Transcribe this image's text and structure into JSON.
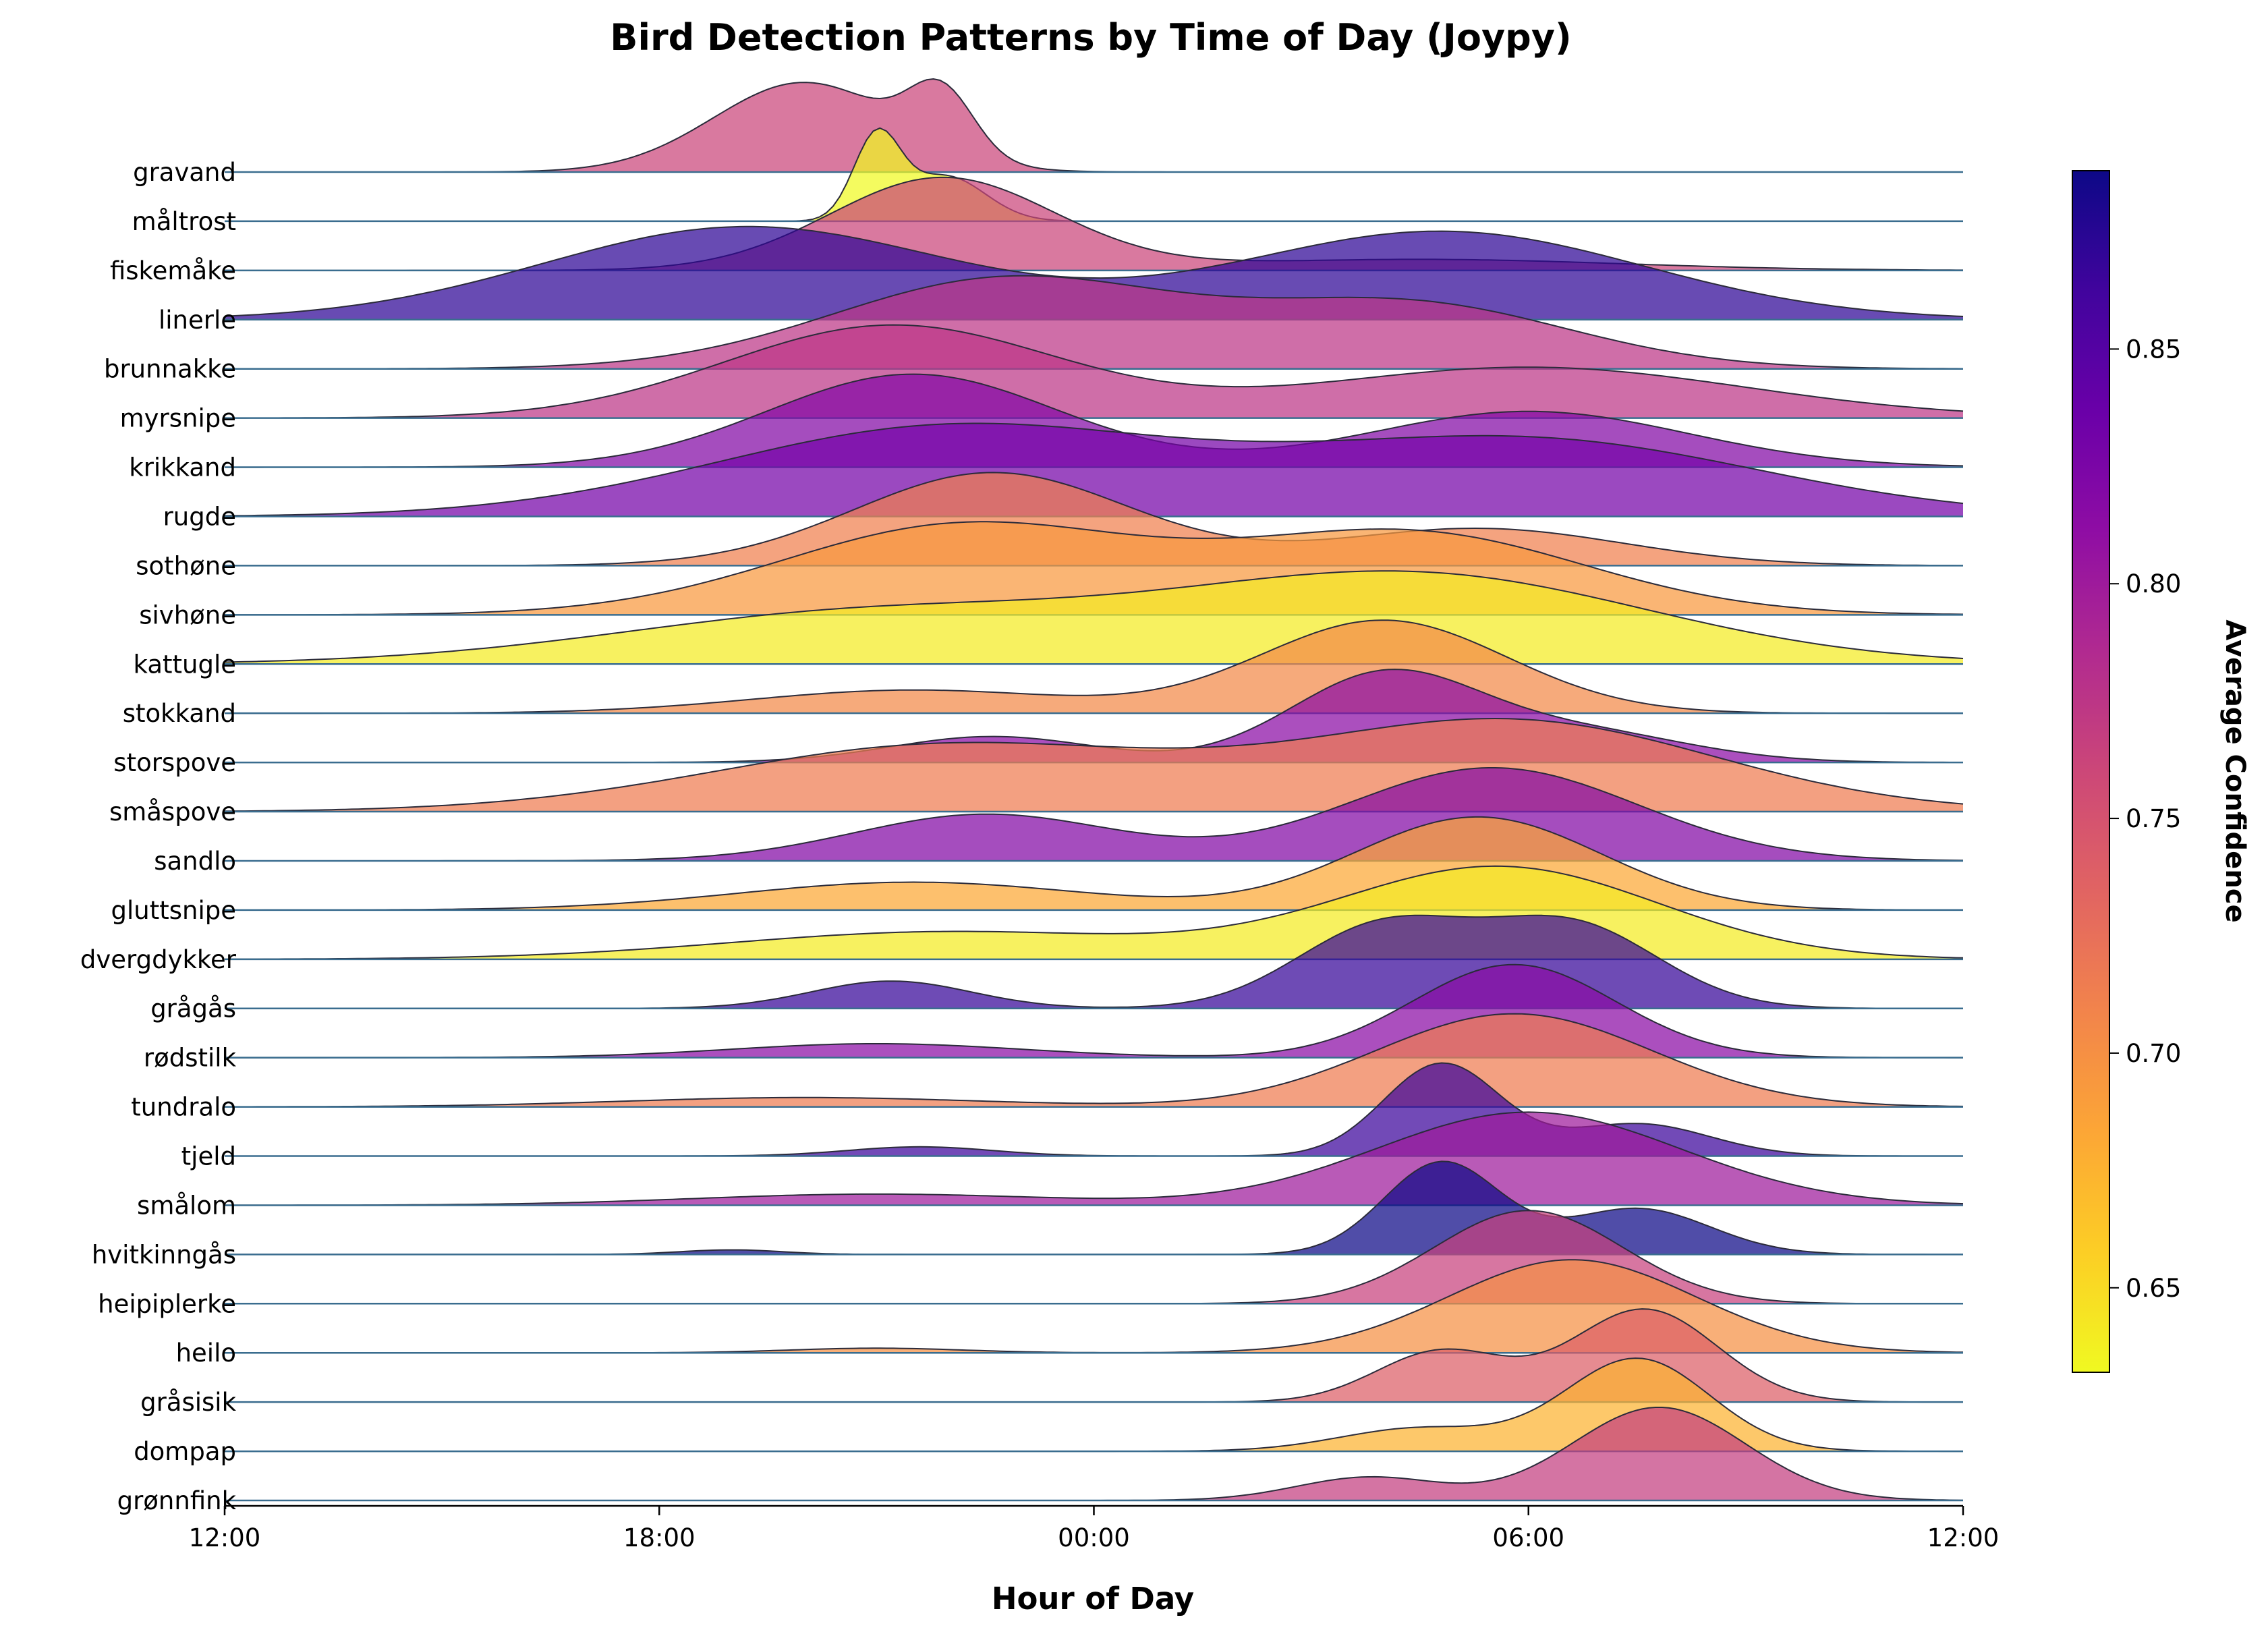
{
  "chart_data": {
    "type": "joyplot",
    "title": "Bird Detection Patterns by Time of Day (Joypy)",
    "xlabel": "Hour of Day",
    "x_ticks": [
      "12:00",
      "18:00",
      "00:00",
      "06:00",
      "12:00"
    ],
    "x_range_hours_from_noon": [
      0,
      24
    ],
    "grid": false,
    "colorbar": {
      "label": "Average Confidence",
      "range": [
        0.632,
        0.888
      ],
      "ticks": [
        "0.65",
        "0.70",
        "0.75",
        "0.80",
        "0.85"
      ],
      "colormap": "plasma_r"
    },
    "series": [
      {
        "name": "gravand",
        "confidence": 0.762,
        "peaks": [
          [
            8.0,
            1.25,
            1.0
          ],
          [
            9.9,
            0.45,
            0.7
          ]
        ]
      },
      {
        "name": "måltrost",
        "confidence": 0.632,
        "peaks": [
          [
            9.0,
            0.32,
            1.0
          ],
          [
            9.95,
            0.55,
            0.55
          ]
        ]
      },
      {
        "name": "fiskemåke",
        "confidence": 0.762,
        "peaks": [
          [
            9.9,
            1.55,
            1.0
          ],
          [
            16.5,
            2.8,
            0.12
          ]
        ]
      },
      {
        "name": "linerle",
        "confidence": 0.872,
        "peaks": [
          [
            7.2,
            2.8,
            1.0
          ],
          [
            16.8,
            2.8,
            0.95
          ]
        ]
      },
      {
        "name": "brunnakke",
        "confidence": 0.775,
        "peaks": [
          [
            10.8,
            2.4,
            1.0
          ],
          [
            16.4,
            2.2,
            0.7
          ]
        ]
      },
      {
        "name": "myrsnipe",
        "confidence": 0.775,
        "peaks": [
          [
            9.2,
            2.3,
            1.0
          ],
          [
            18.0,
            3.0,
            0.55
          ]
        ]
      },
      {
        "name": "krikkand",
        "confidence": 0.82,
        "peaks": [
          [
            9.5,
            2.0,
            1.0
          ],
          [
            18.0,
            2.2,
            0.6
          ]
        ]
      },
      {
        "name": "rugde",
        "confidence": 0.83,
        "peaks": [
          [
            10.0,
            3.2,
            1.0
          ],
          [
            18.0,
            3.2,
            0.85
          ]
        ]
      },
      {
        "name": "sothøne",
        "confidence": 0.712,
        "peaks": [
          [
            10.6,
            1.9,
            1.0
          ],
          [
            17.3,
            2.0,
            0.4
          ]
        ]
      },
      {
        "name": "sivhøne",
        "confidence": 0.694,
        "peaks": [
          [
            10.2,
            2.5,
            1.0
          ],
          [
            16.4,
            2.4,
            0.9
          ]
        ]
      },
      {
        "name": "kattugle",
        "confidence": 0.64,
        "peaks": [
          [
            16.5,
            3.2,
            1.0
          ],
          [
            9.0,
            3.5,
            0.6
          ]
        ]
      },
      {
        "name": "stokkand",
        "confidence": 0.705,
        "peaks": [
          [
            16.0,
            1.7,
            1.0
          ],
          [
            9.5,
            2.2,
            0.25
          ]
        ]
      },
      {
        "name": "storspove",
        "confidence": 0.815,
        "peaks": [
          [
            16.0,
            1.3,
            1.0
          ],
          [
            10.6,
            1.4,
            0.3
          ],
          [
            18.7,
            1.5,
            0.35
          ]
        ]
      },
      {
        "name": "småspove",
        "confidence": 0.715,
        "peaks": [
          [
            17.8,
            2.8,
            1.0
          ],
          [
            10.0,
            3.2,
            0.75
          ]
        ]
      },
      {
        "name": "sandlo",
        "confidence": 0.82,
        "peaks": [
          [
            17.5,
            2.0,
            1.0
          ],
          [
            10.5,
            1.8,
            0.5
          ]
        ]
      },
      {
        "name": "gluttsnipe",
        "confidence": 0.682,
        "peaks": [
          [
            17.3,
            1.7,
            1.0
          ],
          [
            9.5,
            2.4,
            0.3
          ]
        ]
      },
      {
        "name": "dvergdykker",
        "confidence": 0.64,
        "peaks": [
          [
            17.6,
            2.2,
            1.0
          ],
          [
            10.0,
            3.0,
            0.3
          ]
        ]
      },
      {
        "name": "grågås",
        "confidence": 0.868,
        "peaks": [
          [
            16.0,
            1.2,
            0.9
          ],
          [
            18.6,
            1.2,
            0.9
          ],
          [
            9.2,
            1.1,
            0.3
          ]
        ]
      },
      {
        "name": "rødstilk",
        "confidence": 0.815,
        "peaks": [
          [
            17.8,
            1.4,
            1.0
          ],
          [
            9.0,
            2.0,
            0.15
          ]
        ]
      },
      {
        "name": "tundralo",
        "confidence": 0.715,
        "peaks": [
          [
            17.8,
            1.9,
            1.0
          ],
          [
            8.0,
            2.5,
            0.1
          ]
        ]
      },
      {
        "name": "tjeld",
        "confidence": 0.865,
        "peaks": [
          [
            16.8,
            0.8,
            1.0
          ],
          [
            19.5,
            1.0,
            0.35
          ],
          [
            9.6,
            1.0,
            0.1
          ]
        ]
      },
      {
        "name": "smålom",
        "confidence": 0.8,
        "peaks": [
          [
            18.0,
            2.1,
            1.0
          ],
          [
            9.0,
            2.5,
            0.12
          ]
        ]
      },
      {
        "name": "hvitkinngås",
        "confidence": 0.888,
        "peaks": [
          [
            16.8,
            0.8,
            1.0
          ],
          [
            19.5,
            1.0,
            0.5
          ],
          [
            7.0,
            0.7,
            0.05
          ]
        ]
      },
      {
        "name": "heipiplerke",
        "confidence": 0.765,
        "peaks": [
          [
            18.0,
            1.3,
            1.0
          ]
        ]
      },
      {
        "name": "heilo",
        "confidence": 0.7,
        "peaks": [
          [
            18.6,
            1.7,
            1.0
          ],
          [
            9.0,
            1.2,
            0.05
          ]
        ]
      },
      {
        "name": "gråsisik",
        "confidence": 0.74,
        "peaks": [
          [
            16.8,
            0.9,
            0.55
          ],
          [
            19.6,
            1.0,
            1.0
          ]
        ]
      },
      {
        "name": "dompap",
        "confidence": 0.675,
        "peaks": [
          [
            16.5,
            1.1,
            0.25
          ],
          [
            19.5,
            1.0,
            1.0
          ]
        ]
      },
      {
        "name": "grønnfink",
        "confidence": 0.768,
        "peaks": [
          [
            15.8,
            1.0,
            0.25
          ],
          [
            19.8,
            1.2,
            1.0
          ]
        ]
      }
    ]
  }
}
